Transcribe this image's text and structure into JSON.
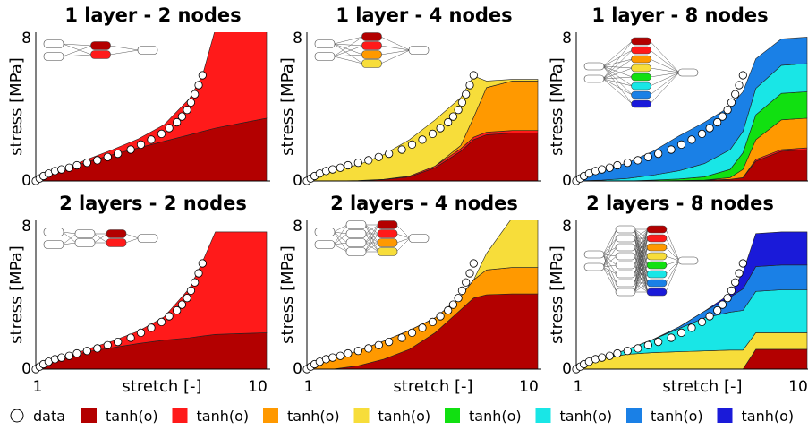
{
  "shared": {
    "x_ticks": [
      "1",
      "10"
    ],
    "y_ticks": [
      "0",
      "8"
    ],
    "xlabel": "stretch [-]",
    "ylabel": "stress [MPa]",
    "xlim": [
      1,
      10
    ],
    "ylim": [
      0,
      9
    ]
  },
  "legend": {
    "data_label": "data",
    "items": [
      {
        "label": "tanh(o)",
        "color": "#b30000"
      },
      {
        "label": "tanh(o)",
        "color": "#ff1a1a"
      },
      {
        "label": "tanh(o)",
        "color": "#ff9900"
      },
      {
        "label": "tanh(o)",
        "color": "#f7dd3a"
      },
      {
        "label": "tanh(o)",
        "color": "#11e011"
      },
      {
        "label": "tanh(o)",
        "color": "#19e6e6"
      },
      {
        "label": "tanh(o)",
        "color": "#1a80e6"
      },
      {
        "label": "tanh(o)",
        "color": "#1a1ad9"
      }
    ]
  },
  "data_points": {
    "x": [
      1.0,
      1.15,
      1.3,
      1.5,
      1.75,
      2.0,
      2.3,
      2.6,
      3.0,
      3.4,
      3.8,
      4.2,
      4.7,
      5.1,
      5.5,
      5.9,
      6.2,
      6.5,
      6.7,
      6.9,
      7.05,
      7.2,
      7.35,
      7.5
    ],
    "y": [
      0.0,
      0.15,
      0.3,
      0.45,
      0.6,
      0.7,
      0.8,
      0.95,
      1.1,
      1.25,
      1.45,
      1.65,
      1.9,
      2.2,
      2.5,
      2.85,
      3.2,
      3.55,
      3.9,
      4.3,
      4.75,
      5.25,
      5.8,
      6.4
    ]
  },
  "chart_data": [
    {
      "type": "area",
      "title": "1 layer - 2 nodes",
      "x": [
        1,
        2,
        3,
        4,
        5,
        6,
        7,
        7.5,
        8,
        9,
        10
      ],
      "series": [
        {
          "color": "#b30000",
          "values": [
            0,
            0.65,
            1.15,
            1.6,
            2.0,
            2.4,
            2.8,
            3.0,
            3.2,
            3.5,
            3.8
          ]
        },
        {
          "color": "#ff1a1a",
          "values": [
            0,
            0.05,
            0.15,
            0.3,
            0.55,
            1.0,
            2.2,
            3.4,
            6.0,
            6.0,
            6.0
          ]
        }
      ]
    },
    {
      "type": "area",
      "title": "1 layer - 4 nodes",
      "x": [
        1,
        2,
        3,
        4,
        5,
        6,
        7,
        7.5,
        8,
        9,
        10
      ],
      "series": [
        {
          "color": "#b30000",
          "values": [
            0,
            0,
            0.02,
            0.08,
            0.25,
            0.8,
            1.8,
            2.5,
            2.8,
            2.9,
            2.9
          ]
        },
        {
          "color": "#ff1a1a",
          "values": [
            0,
            0,
            0,
            0.02,
            0.05,
            0.1,
            0.15,
            0.15,
            0.15,
            0.15,
            0.15
          ]
        },
        {
          "color": "#ff9900",
          "values": [
            0,
            0,
            0,
            0,
            0,
            0,
            0.2,
            1.2,
            2.7,
            3.0,
            3.0
          ]
        },
        {
          "color": "#f7dd3a",
          "values": [
            0,
            0.65,
            0.95,
            1.5,
            2.2,
            2.8,
            2.9,
            2.5,
            0.4,
            0.1,
            0.1
          ]
        }
      ]
    },
    {
      "type": "area",
      "title": "1 layer - 8 nodes",
      "x": [
        1,
        2,
        3,
        4,
        5,
        6,
        7,
        7.5,
        8,
        9,
        10
      ],
      "series": [
        {
          "color": "#b30000",
          "values": [
            0,
            0,
            0,
            0,
            0.02,
            0.05,
            0.1,
            0.2,
            1.2,
            1.8,
            1.9
          ]
        },
        {
          "color": "#ff1a1a",
          "values": [
            0,
            0,
            0,
            0,
            0,
            0,
            0,
            0,
            0.1,
            0.1,
            0.1
          ]
        },
        {
          "color": "#ff9900",
          "values": [
            0,
            0,
            0,
            0,
            0,
            0,
            0.1,
            0.5,
            1.2,
            1.8,
            1.8
          ]
        },
        {
          "color": "#f7dd3a",
          "values": [
            0,
            0,
            0,
            0,
            0,
            0,
            0,
            0,
            0,
            0,
            0
          ]
        },
        {
          "color": "#11e011",
          "values": [
            0,
            0,
            0,
            0.05,
            0.1,
            0.2,
            0.5,
            1.0,
            1.5,
            1.6,
            1.6
          ]
        },
        {
          "color": "#19e6e6",
          "values": [
            0,
            0.05,
            0.15,
            0.3,
            0.5,
            0.8,
            1.2,
            1.3,
            1.6,
            1.7,
            1.7
          ]
        },
        {
          "color": "#1a80e6",
          "values": [
            0,
            0.6,
            0.95,
            1.45,
            2.1,
            2.5,
            2.6,
            2.4,
            1.8,
            1.6,
            1.6
          ]
        },
        {
          "color": "#1a1ad9",
          "values": [
            0,
            0,
            0,
            0,
            0,
            0,
            0,
            0,
            0,
            0,
            0
          ]
        }
      ]
    },
    {
      "type": "area",
      "title": "2 layers - 2 nodes",
      "x": [
        1,
        2,
        3,
        4,
        5,
        6,
        7,
        7.5,
        8,
        9,
        10
      ],
      "series": [
        {
          "color": "#b30000",
          "values": [
            0,
            0.65,
            1.05,
            1.3,
            1.55,
            1.75,
            1.9,
            2.0,
            2.1,
            2.15,
            2.2
          ]
        },
        {
          "color": "#ff1a1a",
          "values": [
            0,
            0,
            0.15,
            0.4,
            0.75,
            1.4,
            3.0,
            4.5,
            6.2,
            6.15,
            6.1
          ]
        }
      ]
    },
    {
      "type": "area",
      "title": "2 layers - 4 nodes",
      "x": [
        1,
        2,
        3,
        4,
        5,
        6,
        7,
        7.5,
        8,
        9,
        10
      ],
      "series": [
        {
          "color": "#b30000",
          "values": [
            0,
            0,
            0.2,
            0.6,
            1.2,
            2.2,
            3.6,
            4.3,
            4.5,
            4.55,
            4.55
          ]
        },
        {
          "color": "#ff1a1a",
          "values": [
            0,
            0,
            0,
            0,
            0,
            0,
            0,
            0,
            0,
            0,
            0
          ]
        },
        {
          "color": "#ff9900",
          "values": [
            0,
            0.65,
            0.9,
            1.1,
            1.15,
            0.9,
            0.8,
            1.1,
            1.5,
            1.6,
            1.6
          ]
        },
        {
          "color": "#f7dd3a",
          "values": [
            0,
            0,
            0,
            0,
            0,
            0,
            0,
            0,
            1.0,
            3.0,
            3.0
          ]
        }
      ]
    },
    {
      "type": "area",
      "title": "2 layers - 8 nodes",
      "x": [
        1,
        2,
        3,
        4,
        5,
        6,
        7,
        7.5,
        8,
        9,
        10
      ],
      "series": [
        {
          "color": "#b30000",
          "values": [
            0,
            0,
            0,
            0,
            0,
            0,
            0,
            0,
            1.2,
            1.2,
            1.2
          ]
        },
        {
          "color": "#ff1a1a",
          "values": [
            0,
            0,
            0,
            0,
            0,
            0,
            0,
            0,
            0,
            0,
            0
          ]
        },
        {
          "color": "#ff9900",
          "values": [
            0,
            0,
            0,
            0,
            0,
            0,
            0,
            0,
            0,
            0,
            0
          ]
        },
        {
          "color": "#f7dd3a",
          "values": [
            0,
            0.65,
            0.9,
            1.0,
            1.05,
            1.1,
            1.15,
            1.15,
            1.0,
            1.0,
            1.0
          ]
        },
        {
          "color": "#11e011",
          "values": [
            0,
            0,
            0,
            0,
            0,
            0,
            0,
            0,
            0,
            0,
            0
          ]
        },
        {
          "color": "#19e6e6",
          "values": [
            0,
            0,
            0.3,
            0.8,
            1.4,
            2.0,
            2.3,
            2.4,
            2.5,
            2.6,
            2.6
          ]
        },
        {
          "color": "#1a80e6",
          "values": [
            0,
            0,
            0,
            0,
            0.1,
            0.4,
            0.9,
            1.3,
            1.5,
            1.5,
            1.5
          ]
        },
        {
          "color": "#1a1ad9",
          "values": [
            0,
            0,
            0,
            0,
            0,
            0,
            0.2,
            1.0,
            2.0,
            2.0,
            2.0
          ]
        }
      ]
    }
  ]
}
